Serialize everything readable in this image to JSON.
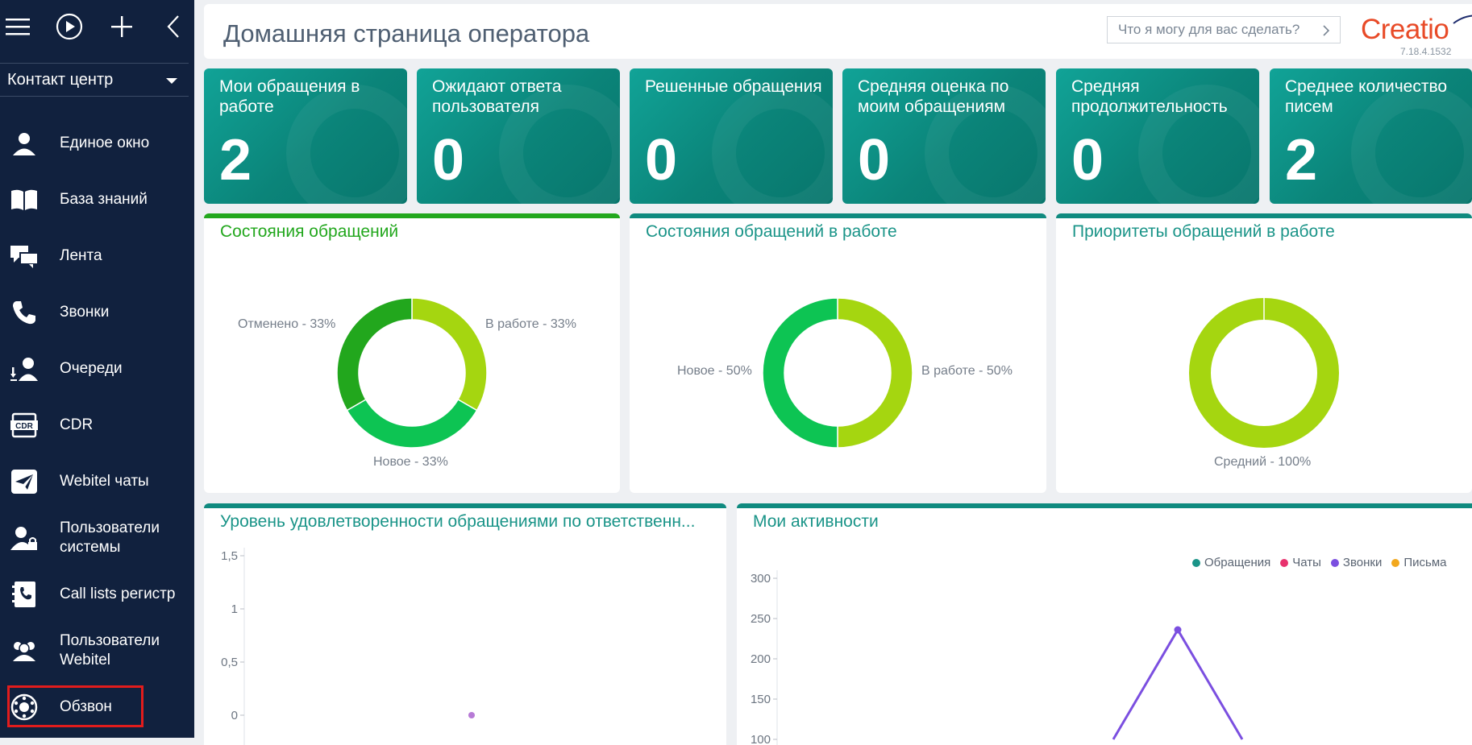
{
  "header": {
    "title": "Домашняя страница оператора",
    "search_placeholder": "Что я могу для вас сделать?",
    "logo": "Creatio",
    "version": "7.18.4.1532"
  },
  "sidebar": {
    "workspace": "Контакт центр",
    "items": [
      {
        "label": "Единое окно",
        "icon": "agent-icon"
      },
      {
        "label": "База знаний",
        "icon": "book-icon"
      },
      {
        "label": "Лента",
        "icon": "chat-bubbles-icon"
      },
      {
        "label": "Звонки",
        "icon": "phone-icon"
      },
      {
        "label": "Очереди",
        "icon": "queue-icon"
      },
      {
        "label": "CDR",
        "icon": "cdr-icon"
      },
      {
        "label": "Webitel чаты",
        "icon": "paper-plane-icon"
      },
      {
        "label": "Пользователи системы",
        "icon": "user-lock-icon"
      },
      {
        "label": "Call lists регистр",
        "icon": "phonebook-icon"
      },
      {
        "label": "Пользователи Webitel",
        "icon": "users-icon"
      },
      {
        "label": "Обзвон",
        "icon": "dialer-icon"
      }
    ]
  },
  "tiles": [
    {
      "title": "Мои обращения в работе",
      "value": "2"
    },
    {
      "title": "Ожидают ответа пользователя",
      "value": "0"
    },
    {
      "title": "Решенные обращения",
      "value": "0"
    },
    {
      "title": "Средняя оценка по моим обращениям",
      "value": "0"
    },
    {
      "title": "Средняя продолжительность",
      "value": "0"
    },
    {
      "title": "Среднее количество писем",
      "value": "2"
    }
  ],
  "donut1": {
    "title": "Состояния обращений",
    "slices": [
      {
        "label": "В работе - 33%",
        "value": 33.33,
        "color": "#a5d610"
      },
      {
        "label": "Новое - 33%",
        "value": 33.33,
        "color": "#0dc453"
      },
      {
        "label": "Отменено - 33%",
        "value": 33.33,
        "color": "#22a71d"
      }
    ]
  },
  "donut2": {
    "title": "Состояния обращений в работе",
    "slices": [
      {
        "label": "В работе - 50%",
        "value": 50,
        "color": "#a5d610"
      },
      {
        "label": "Новое - 50%",
        "value": 50,
        "color": "#0dc453"
      }
    ]
  },
  "donut3": {
    "title": "Приоритеты обращений в работе",
    "slices": [
      {
        "label": "Средний - 100%",
        "value": 100,
        "color": "#a5d610"
      }
    ]
  },
  "chart_data": [
    {
      "type": "scatter",
      "title": "Уровень удовлетворенности обращениями по ответственн...",
      "yticks": [
        "1,5",
        "1",
        "0,5",
        "0"
      ],
      "ylim": [
        0,
        1.5
      ],
      "points": [
        {
          "y": 0
        }
      ]
    },
    {
      "type": "line",
      "title": "Мои активности",
      "yticks": [
        "300",
        "250",
        "200",
        "150",
        "100"
      ],
      "legend": [
        {
          "name": "Обращения",
          "color": "#1a9488"
        },
        {
          "name": "Чаты",
          "color": "#e8326e"
        },
        {
          "name": "Звонки",
          "color": "#7b4fe0"
        },
        {
          "name": "Письма",
          "color": "#f2a81d"
        }
      ],
      "series": [
        {
          "name": "Звонки",
          "values": [
            {
              "x": 0,
              "y": 100
            },
            {
              "x": 1,
              "y": 236
            },
            {
              "x": 2,
              "y": 100
            }
          ]
        }
      ]
    }
  ]
}
